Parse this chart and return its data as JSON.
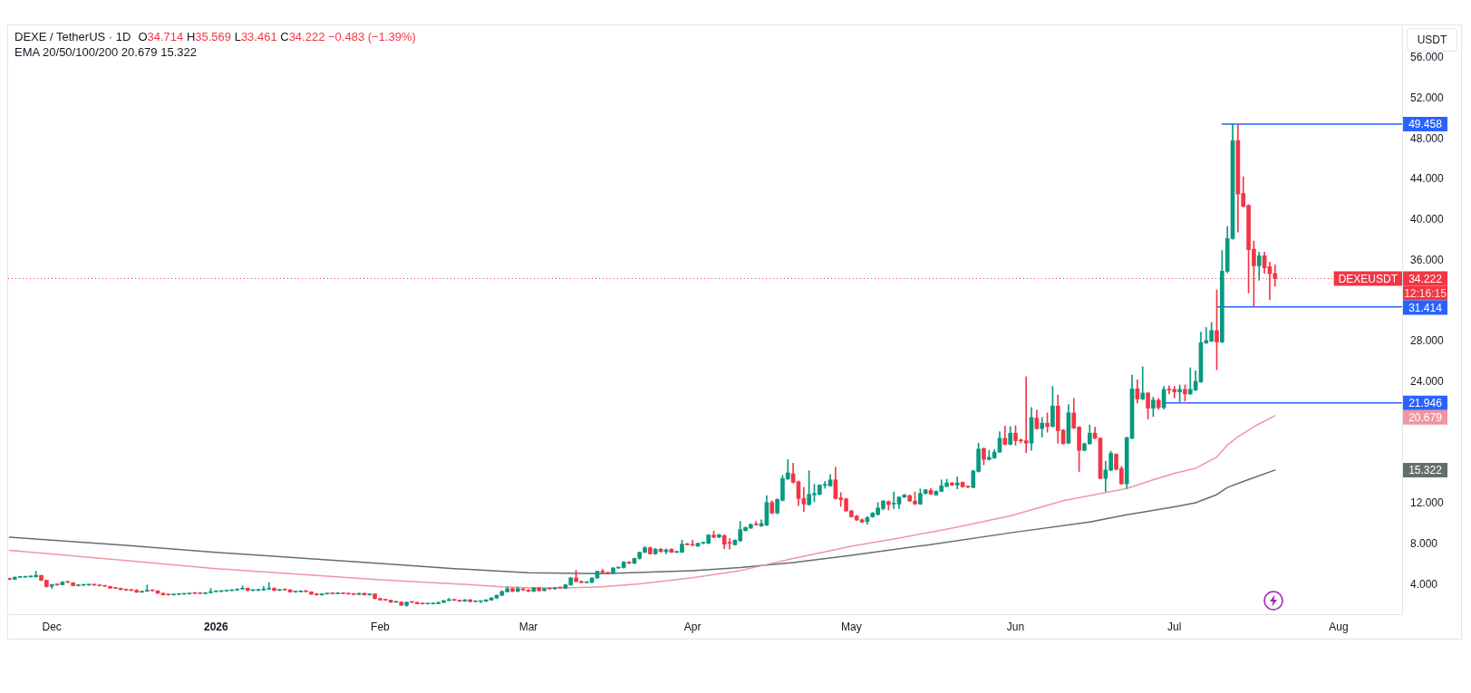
{
  "chart_data": {
    "type": "candlestick",
    "title": "DEXE / TetherUS · 1D",
    "subtitle": "O34.714 H35.569 L33.461 C34.222 −0.483 (−1.39%)",
    "ylabel": "USDT",
    "annotations": [
      "EMA 20/50/100/200 20.679 15.322",
      "DEXEUSDT",
      "12:16:15",
      "20.679",
      "15.322"
    ],
    "x": [
      "2025-11-23",
      "2025-11-24",
      "2025-11-25",
      "2025-11-26",
      "2025-11-27",
      "2025-11-28",
      "2025-11-29",
      "2025-11-30",
      "2025-12-01",
      "2025-12-02",
      "2025-12-03",
      "2025-12-04",
      "2025-12-05",
      "2025-12-06",
      "2025-12-07",
      "2025-12-08",
      "2025-12-09",
      "2025-12-10",
      "2025-12-11",
      "2025-12-12",
      "2025-12-13",
      "2025-12-14",
      "2025-12-15",
      "2025-12-16",
      "2025-12-17",
      "2025-12-18",
      "2025-12-19",
      "2025-12-20",
      "2025-12-21",
      "2025-12-22",
      "2025-12-23",
      "2025-12-24",
      "2025-12-25",
      "2025-12-26",
      "2025-12-27",
      "2025-12-28",
      "2025-12-29",
      "2025-12-30",
      "2025-12-31",
      "2026-01-01",
      "2026-01-02",
      "2026-01-03",
      "2026-01-04",
      "2026-01-05",
      "2026-01-06",
      "2026-01-07",
      "2026-01-08",
      "2026-01-09",
      "2026-01-10",
      "2026-01-11",
      "2026-01-12",
      "2026-01-13",
      "2026-01-14",
      "2026-01-15",
      "2026-01-16",
      "2026-01-17",
      "2026-01-18",
      "2026-01-19",
      "2026-01-20",
      "2026-01-21",
      "2026-01-22",
      "2026-01-23",
      "2026-01-24",
      "2026-01-25",
      "2026-01-26",
      "2026-01-27",
      "2026-01-28",
      "2026-01-29",
      "2026-01-30",
      "2026-01-31",
      "2026-02-01",
      "2026-02-02",
      "2026-02-03",
      "2026-02-04",
      "2026-02-05",
      "2026-02-06",
      "2026-02-07",
      "2026-02-08",
      "2026-02-09",
      "2026-02-10",
      "2026-02-11",
      "2026-02-12",
      "2026-02-13",
      "2026-02-14",
      "2026-02-15",
      "2026-02-16",
      "2026-02-17",
      "2026-02-18",
      "2026-02-19",
      "2026-02-20",
      "2026-02-21",
      "2026-02-22",
      "2026-02-23",
      "2026-02-24",
      "2026-02-25",
      "2026-02-26",
      "2026-02-27",
      "2026-02-28",
      "2026-03-01",
      "2026-03-02",
      "2026-03-03",
      "2026-03-04",
      "2026-03-05",
      "2026-03-06",
      "2026-03-07",
      "2026-03-08",
      "2026-03-09",
      "2026-03-10",
      "2026-03-11",
      "2026-03-12",
      "2026-03-13",
      "2026-03-14",
      "2026-03-15",
      "2026-03-16",
      "2026-03-17",
      "2026-03-18",
      "2026-03-19",
      "2026-03-20",
      "2026-03-21",
      "2026-03-22",
      "2026-03-23",
      "2026-03-24",
      "2026-03-25",
      "2026-03-26",
      "2026-03-27",
      "2026-03-28",
      "2026-03-29",
      "2026-03-30",
      "2026-03-31",
      "2026-04-01",
      "2026-04-02",
      "2026-04-03",
      "2026-04-04",
      "2026-04-05",
      "2026-04-06",
      "2026-04-07",
      "2026-04-08",
      "2026-04-09",
      "2026-04-10",
      "2026-04-11",
      "2026-04-12",
      "2026-04-13",
      "2026-04-14",
      "2026-04-15",
      "2026-04-16",
      "2026-04-17",
      "2026-04-18",
      "2026-04-19",
      "2026-04-20",
      "2026-04-21",
      "2026-04-22",
      "2026-04-23",
      "2026-04-24",
      "2026-04-25",
      "2026-04-26",
      "2026-04-27",
      "2026-04-28",
      "2026-04-29",
      "2026-04-30",
      "2026-05-01",
      "2026-05-02",
      "2026-05-03",
      "2026-05-04",
      "2026-05-05",
      "2026-05-06",
      "2026-05-07",
      "2026-05-08",
      "2026-05-09",
      "2026-05-10",
      "2026-05-11",
      "2026-05-12",
      "2026-05-13",
      "2026-05-14",
      "2026-05-15",
      "2026-05-16",
      "2026-05-17",
      "2026-05-18",
      "2026-05-19",
      "2026-05-20",
      "2026-05-21",
      "2026-05-22",
      "2026-05-23",
      "2026-05-24",
      "2026-05-25",
      "2026-05-26",
      "2026-05-27",
      "2026-05-28",
      "2026-05-29",
      "2026-05-30",
      "2026-05-31",
      "2026-06-01",
      "2026-06-02",
      "2026-06-03",
      "2026-06-04",
      "2026-06-05",
      "2026-06-06",
      "2026-06-07",
      "2026-06-08",
      "2026-06-09",
      "2026-06-10",
      "2026-06-11",
      "2026-06-12",
      "2026-06-13",
      "2026-06-14",
      "2026-06-15",
      "2026-06-16",
      "2026-06-17",
      "2026-06-18",
      "2026-06-19",
      "2026-06-20",
      "2026-06-21",
      "2026-06-22",
      "2026-06-23",
      "2026-06-24",
      "2026-06-25",
      "2026-06-26",
      "2026-06-27",
      "2026-06-28",
      "2026-06-29",
      "2026-06-30",
      "2026-07-01",
      "2026-07-02",
      "2026-07-03",
      "2026-07-04",
      "2026-07-05",
      "2026-07-06",
      "2026-07-07",
      "2026-07-08",
      "2026-07-09",
      "2026-07-10",
      "2026-07-11",
      "2026-07-12",
      "2026-07-13",
      "2026-07-14",
      "2026-07-15",
      "2026-07-16",
      "2026-07-17",
      "2026-07-18",
      "2026-07-19",
      "2026-07-20"
    ],
    "ohlc": [
      [
        4.62,
        4.66,
        4.5,
        4.54
      ],
      [
        4.54,
        4.8,
        4.52,
        4.74
      ],
      [
        4.74,
        4.8,
        4.7,
        4.76
      ],
      [
        4.76,
        4.82,
        4.72,
        4.78
      ],
      [
        4.78,
        4.88,
        4.74,
        4.84
      ],
      [
        4.8,
        5.33,
        4.74,
        4.92
      ],
      [
        4.92,
        4.95,
        4.4,
        4.45
      ],
      [
        4.45,
        4.48,
        3.78,
        3.82
      ],
      [
        3.86,
        4.05,
        3.64,
        4.02
      ],
      [
        4.02,
        4.08,
        3.94,
        4.0
      ],
      [
        4.0,
        4.32,
        3.98,
        4.28
      ],
      [
        4.28,
        4.34,
        4.2,
        4.24
      ],
      [
        4.2,
        4.22,
        3.88,
        3.92
      ],
      [
        3.92,
        4.0,
        3.88,
        3.96
      ],
      [
        3.96,
        4.02,
        3.92,
        3.98
      ],
      [
        3.98,
        4.04,
        3.94,
        4.0
      ],
      [
        4.0,
        4.04,
        3.94,
        3.97
      ],
      [
        3.97,
        4.0,
        3.88,
        3.9
      ],
      [
        3.9,
        3.94,
        3.84,
        3.86
      ],
      [
        3.84,
        3.86,
        3.64,
        3.67
      ],
      [
        3.67,
        3.72,
        3.62,
        3.65
      ],
      [
        3.65,
        3.68,
        3.5,
        3.53
      ],
      [
        3.53,
        3.56,
        3.45,
        3.48
      ],
      [
        3.48,
        3.52,
        3.4,
        3.44
      ],
      [
        3.46,
        3.54,
        3.24,
        3.27
      ],
      [
        3.27,
        3.4,
        3.25,
        3.36
      ],
      [
        3.36,
        3.98,
        3.34,
        3.46
      ],
      [
        3.46,
        3.48,
        3.38,
        3.42
      ],
      [
        3.4,
        3.42,
        3.14,
        3.17
      ],
      [
        3.17,
        3.2,
        2.98,
        3.02
      ],
      [
        3.02,
        3.06,
        2.97,
        3.0
      ],
      [
        3.0,
        3.08,
        2.98,
        3.05
      ],
      [
        3.05,
        3.1,
        3.02,
        3.08
      ],
      [
        3.08,
        3.12,
        3.04,
        3.1
      ],
      [
        3.1,
        3.18,
        3.08,
        3.16
      ],
      [
        3.16,
        3.2,
        3.12,
        3.15
      ],
      [
        3.15,
        3.18,
        3.1,
        3.13
      ],
      [
        3.13,
        3.24,
        3.11,
        3.22
      ],
      [
        3.22,
        3.64,
        3.2,
        3.32
      ],
      [
        3.32,
        3.36,
        3.28,
        3.34
      ],
      [
        3.34,
        3.42,
        3.32,
        3.39
      ],
      [
        3.39,
        3.45,
        3.36,
        3.42
      ],
      [
        3.42,
        3.5,
        3.4,
        3.48
      ],
      [
        3.48,
        3.6,
        3.46,
        3.58
      ],
      [
        3.58,
        3.9,
        3.55,
        3.66
      ],
      [
        3.66,
        3.7,
        3.4,
        3.44
      ],
      [
        3.44,
        3.48,
        3.4,
        3.45
      ],
      [
        3.45,
        3.54,
        3.42,
        3.5
      ],
      [
        3.5,
        3.84,
        3.46,
        3.58
      ],
      [
        3.58,
        4.22,
        3.52,
        3.66
      ],
      [
        3.66,
        3.7,
        3.4,
        3.44
      ],
      [
        3.44,
        3.55,
        3.42,
        3.52
      ],
      [
        3.52,
        3.56,
        3.46,
        3.5
      ],
      [
        3.5,
        3.53,
        3.26,
        3.29
      ],
      [
        3.29,
        3.34,
        3.25,
        3.31
      ],
      [
        3.31,
        3.42,
        3.29,
        3.39
      ],
      [
        3.39,
        3.42,
        3.3,
        3.33
      ],
      [
        3.3,
        3.32,
        3.05,
        3.07
      ],
      [
        3.1,
        3.16,
        2.98,
        3.0
      ],
      [
        3.0,
        3.12,
        2.98,
        3.1
      ],
      [
        3.1,
        3.15,
        3.08,
        3.13
      ],
      [
        3.13,
        3.16,
        3.1,
        3.12
      ],
      [
        3.12,
        3.22,
        3.1,
        3.2
      ],
      [
        3.2,
        3.22,
        3.1,
        3.13
      ],
      [
        3.13,
        3.15,
        3.06,
        3.09
      ],
      [
        3.12,
        3.14,
        3.02,
        3.04
      ],
      [
        3.04,
        3.18,
        3.02,
        3.16
      ],
      [
        3.16,
        3.2,
        2.98,
        3.0
      ],
      [
        3.0,
        3.12,
        2.98,
        3.1
      ],
      [
        3.1,
        3.12,
        2.6,
        2.64
      ],
      [
        2.64,
        2.68,
        2.48,
        2.5
      ],
      [
        2.5,
        2.54,
        2.46,
        2.49
      ],
      [
        2.49,
        2.5,
        2.26,
        2.28
      ],
      [
        2.28,
        2.36,
        2.26,
        2.34
      ],
      [
        2.3,
        2.32,
        1.96,
        1.98
      ],
      [
        1.98,
        2.32,
        1.86,
        2.28
      ],
      [
        2.28,
        2.32,
        2.24,
        2.27
      ],
      [
        2.27,
        2.28,
        2.1,
        2.13
      ],
      [
        2.13,
        2.16,
        2.08,
        2.11
      ],
      [
        2.11,
        2.15,
        2.08,
        2.12
      ],
      [
        2.12,
        2.18,
        2.1,
        2.14
      ],
      [
        2.14,
        2.28,
        2.12,
        2.26
      ],
      [
        2.26,
        2.46,
        2.24,
        2.44
      ],
      [
        2.44,
        2.68,
        2.42,
        2.54
      ],
      [
        2.54,
        2.56,
        2.44,
        2.47
      ],
      [
        2.47,
        2.5,
        2.36,
        2.38
      ],
      [
        2.38,
        2.54,
        2.36,
        2.52
      ],
      [
        2.52,
        2.54,
        2.32,
        2.34
      ],
      [
        2.34,
        2.38,
        2.3,
        2.35
      ],
      [
        2.35,
        2.38,
        2.22,
        2.37
      ],
      [
        2.37,
        2.54,
        2.35,
        2.51
      ],
      [
        2.51,
        2.74,
        2.44,
        2.7
      ],
      [
        2.7,
        3.0,
        2.62,
        2.96
      ],
      [
        2.96,
        3.42,
        2.92,
        3.34
      ],
      [
        3.3,
        3.8,
        3.26,
        3.62
      ],
      [
        3.62,
        3.66,
        3.3,
        3.36
      ],
      [
        3.36,
        3.8,
        3.32,
        3.62
      ],
      [
        3.56,
        3.66,
        3.44,
        3.48
      ],
      [
        3.48,
        3.52,
        3.32,
        3.36
      ],
      [
        3.36,
        3.76,
        3.32,
        3.7
      ],
      [
        3.7,
        3.74,
        3.38,
        3.42
      ],
      [
        3.42,
        3.66,
        3.4,
        3.62
      ],
      [
        3.62,
        3.66,
        3.54,
        3.6
      ],
      [
        3.6,
        3.74,
        3.56,
        3.72
      ],
      [
        3.72,
        3.76,
        3.66,
        3.7
      ],
      [
        3.66,
        4.04,
        3.62,
        4.0
      ],
      [
        4.0,
        4.72,
        3.94,
        4.68
      ],
      [
        4.68,
        5.42,
        4.28,
        4.32
      ],
      [
        4.32,
        4.4,
        4.18,
        4.22
      ],
      [
        4.22,
        4.3,
        4.18,
        4.24
      ],
      [
        4.24,
        4.7,
        4.2,
        4.68
      ],
      [
        4.68,
        5.36,
        4.64,
        5.33
      ],
      [
        5.33,
        5.54,
        5.18,
        5.22
      ],
      [
        5.22,
        5.28,
        5.1,
        5.13
      ],
      [
        5.13,
        5.7,
        5.1,
        5.66
      ],
      [
        5.66,
        5.74,
        5.6,
        5.7
      ],
      [
        5.7,
        6.3,
        5.64,
        6.23
      ],
      [
        6.23,
        6.3,
        6.08,
        6.12
      ],
      [
        6.12,
        6.64,
        6.08,
        6.6
      ],
      [
        6.6,
        7.24,
        6.52,
        7.2
      ],
      [
        7.2,
        7.76,
        7.16,
        7.66
      ],
      [
        7.66,
        7.72,
        7.02,
        7.06
      ],
      [
        7.06,
        7.6,
        7.0,
        7.51
      ],
      [
        7.51,
        7.6,
        7.24,
        7.27
      ],
      [
        7.27,
        7.56,
        7.06,
        7.45
      ],
      [
        7.51,
        7.56,
        7.18,
        7.21
      ],
      [
        7.21,
        7.3,
        7.16,
        7.23
      ],
      [
        7.21,
        8.4,
        7.18,
        8.01
      ],
      [
        8.01,
        8.1,
        7.92,
        7.95
      ],
      [
        7.95,
        8.4,
        7.86,
        7.9
      ],
      [
        7.81,
        8.14,
        7.78,
        8.1
      ],
      [
        8.1,
        8.2,
        8.04,
        8.16
      ],
      [
        8.1,
        8.96,
        8.04,
        8.91
      ],
      [
        8.91,
        9.29,
        8.64,
        8.7
      ],
      [
        8.7,
        8.98,
        8.64,
        8.94
      ],
      [
        8.85,
        8.94,
        7.57,
        8.01
      ],
      [
        8.16,
        8.55,
        7.51,
        8.1
      ],
      [
        7.95,
        8.44,
        7.92,
        8.4
      ],
      [
        8.34,
        10.25,
        8.3,
        9.44
      ],
      [
        9.35,
        9.72,
        9.3,
        9.65
      ],
      [
        9.59,
        10.02,
        9.55,
        9.95
      ],
      [
        9.98,
        10.25,
        9.88,
        9.92
      ],
      [
        9.8,
        10.42,
        9.76,
        10.04
      ],
      [
        9.89,
        12.81,
        9.84,
        12.12
      ],
      [
        12.12,
        12.3,
        11.0,
        11.08
      ],
      [
        11.08,
        12.5,
        11.0,
        12.42
      ],
      [
        12.33,
        14.8,
        12.28,
        14.5
      ],
      [
        14.44,
        16.35,
        14.38,
        15.04
      ],
      [
        14.95,
        15.99,
        14.05,
        14.11
      ],
      [
        14.17,
        14.25,
        11.82,
        12.51
      ],
      [
        12.51,
        13.61,
        11.23,
        11.97
      ],
      [
        11.91,
        15.25,
        11.85,
        12.92
      ],
      [
        12.87,
        13.91,
        12.18,
        13.01
      ],
      [
        12.92,
        13.9,
        12.86,
        13.82
      ],
      [
        13.82,
        14.2,
        13.52,
        13.85
      ],
      [
        13.76,
        14.89,
        13.7,
        14.35
      ],
      [
        14.35,
        15.6,
        12.45,
        12.51
      ],
      [
        12.57,
        13.1,
        11.73,
        12.42
      ],
      [
        12.48,
        12.55,
        11.24,
        11.29
      ],
      [
        11.29,
        11.35,
        10.66,
        10.72
      ],
      [
        10.78,
        10.86,
        10.34,
        10.39
      ],
      [
        10.42,
        10.5,
        10.14,
        10.19
      ],
      [
        10.25,
        10.72,
        9.98,
        10.63
      ],
      [
        10.7,
        11.14,
        10.66,
        11.08
      ],
      [
        10.93,
        12.12,
        10.88,
        11.58
      ],
      [
        11.52,
        12.32,
        11.37,
        12.27
      ],
      [
        12.21,
        12.28,
        11.37,
        11.91
      ],
      [
        11.97,
        13.16,
        11.52,
        12.06
      ],
      [
        11.97,
        12.7,
        11.52,
        12.65
      ],
      [
        12.65,
        12.92,
        12.6,
        12.86
      ],
      [
        12.8,
        12.86,
        12.22,
        12.27
      ],
      [
        12.27,
        13.16,
        11.92,
        11.97
      ],
      [
        11.97,
        13.46,
        11.92,
        13.01
      ],
      [
        13.01,
        13.42,
        12.96,
        13.37
      ],
      [
        13.31,
        13.52,
        12.9,
        12.95
      ],
      [
        12.86,
        13.28,
        12.82,
        13.22
      ],
      [
        13.22,
        14.35,
        13.18,
        13.76
      ],
      [
        13.7,
        14.41,
        13.66,
        14.05
      ],
      [
        14.05,
        14.1,
        13.8,
        13.84
      ],
      [
        13.84,
        14.65,
        13.46,
        14.05
      ],
      [
        14.11,
        14.16,
        13.62,
        13.67
      ],
      [
        13.7,
        13.76,
        13.58,
        13.64
      ],
      [
        13.61,
        15.3,
        13.56,
        15.24
      ],
      [
        15.18,
        17.98,
        15.12,
        17.39
      ],
      [
        17.45,
        17.5,
        15.84,
        16.37
      ],
      [
        16.37,
        17.27,
        16.3,
        16.58
      ],
      [
        16.52,
        17.33,
        16.46,
        17.09
      ],
      [
        17.09,
        19.11,
        17.04,
        18.46
      ],
      [
        18.46,
        19.65,
        17.8,
        17.86
      ],
      [
        17.86,
        19.62,
        17.8,
        18.96
      ],
      [
        18.96,
        19.71,
        17.77,
        18.22
      ],
      [
        18.22,
        18.4,
        18.0,
        18.2
      ],
      [
        18.22,
        24.53,
        17.03,
        17.98
      ],
      [
        17.98,
        21.49,
        17.27,
        20.51
      ],
      [
        20.45,
        21.26,
        19.36,
        19.41
      ],
      [
        19.41,
        20.51,
        18.58,
        19.95
      ],
      [
        19.95,
        20.96,
        19.05,
        19.62
      ],
      [
        19.62,
        23.58,
        19.56,
        21.64
      ],
      [
        21.64,
        22.74,
        17.98,
        19.2
      ],
      [
        19.26,
        19.32,
        17.86,
        17.92
      ],
      [
        17.98,
        21.79,
        17.92,
        20.96
      ],
      [
        20.96,
        22.39,
        19.4,
        19.47
      ],
      [
        19.56,
        19.62,
        15.18,
        17.27
      ],
      [
        17.27,
        17.98,
        17.2,
        17.92
      ],
      [
        17.92,
        19.77,
        17.86,
        18.96
      ],
      [
        18.96,
        19.56,
        18.4,
        18.46
      ],
      [
        18.46,
        18.52,
        14.44,
        14.5
      ],
      [
        14.5,
        16.2,
        13.22,
        15.33
      ],
      [
        15.3,
        17.18,
        15.24,
        16.97
      ],
      [
        16.88,
        16.94,
        15.33,
        15.39
      ],
      [
        15.48,
        15.69,
        13.9,
        13.96
      ],
      [
        13.96,
        18.58,
        13.52,
        18.52
      ],
      [
        18.46,
        24.68,
        18.4,
        23.34
      ],
      [
        23.34,
        24.23,
        21.94,
        22.33
      ],
      [
        22.33,
        25.51,
        22.27,
        22.92
      ],
      [
        22.92,
        22.98,
        20.36,
        21.43
      ],
      [
        21.43,
        22.53,
        20.6,
        22.23
      ],
      [
        22.23,
        22.4,
        21.3,
        21.49
      ],
      [
        21.49,
        23.57,
        21.34,
        23.28
      ],
      [
        23.28,
        23.63,
        22.83,
        23.22
      ],
      [
        23.28,
        23.57,
        22.44,
        23.04
      ],
      [
        23.04,
        23.72,
        22.03,
        23.28
      ],
      [
        23.28,
        23.72,
        22.15,
        22.83
      ],
      [
        22.83,
        25.42,
        22.77,
        23.28
      ],
      [
        23.22,
        25.12,
        23.16,
        24.08
      ],
      [
        24.02,
        28.93,
        23.96,
        27.89
      ],
      [
        27.86,
        29.38,
        27.8,
        28.1
      ],
      [
        28.04,
        29.88,
        27.98,
        29.08
      ],
      [
        29.08,
        33.1,
        25.21,
        27.95
      ],
      [
        27.95,
        36.97,
        27.89,
        34.94
      ],
      [
        34.94,
        39.35,
        34.8,
        38.16
      ],
      [
        38.16,
        49.458,
        38.1,
        47.83
      ],
      [
        47.83,
        49.4,
        38.81,
        42.56
      ],
      [
        42.62,
        44.26,
        41.28,
        41.34
      ],
      [
        41.43,
        41.5,
        32.8,
        37.06
      ],
      [
        37.12,
        37.92,
        31.46,
        35.48
      ],
      [
        35.48,
        36.82,
        34.05,
        36.46
      ],
      [
        36.46,
        36.82,
        34.74,
        35.27
      ],
      [
        35.39,
        35.84,
        32.14,
        34.7
      ],
      [
        34.714,
        35.569,
        33.461,
        34.222
      ]
    ],
    "series": [
      {
        "type": "line",
        "color": "#f096a0",
        "x": [
          "2025-11-23",
          "2025-12-15",
          "2026-01-01",
          "2026-01-15",
          "2026-02-01",
          "2026-02-15",
          "2026-02-24",
          "2026-03-01",
          "2026-03-08",
          "2026-03-15",
          "2026-03-22",
          "2026-04-01",
          "2026-04-10",
          "2026-04-20",
          "2026-05-01",
          "2026-05-10",
          "2026-05-20",
          "2026-05-31",
          "2026-06-10",
          "2026-06-18",
          "2026-06-22",
          "2026-06-26",
          "2026-07-01",
          "2026-07-05",
          "2026-07-09",
          "2026-07-11",
          "2026-07-13",
          "2026-07-16",
          "2026-07-20"
        ],
        "values": [
          7.4,
          6.4,
          5.6,
          5.1,
          4.5,
          4.1,
          3.8,
          3.7,
          3.7,
          3.8,
          4.1,
          4.7,
          5.4,
          6.6,
          7.8,
          8.6,
          9.6,
          10.8,
          12.3,
          13.1,
          13.5,
          14.2,
          15.0,
          15.5,
          16.6,
          17.8,
          18.6,
          19.6,
          20.679
        ]
      },
      {
        "type": "line",
        "color": "#646e6c",
        "x": [
          "2025-11-23",
          "2025-12-15",
          "2026-01-01",
          "2026-01-15",
          "2026-02-01",
          "2026-02-15",
          "2026-03-01",
          "2026-03-15",
          "2026-04-01",
          "2026-04-10",
          "2026-04-20",
          "2026-05-01",
          "2026-05-15",
          "2026-06-01",
          "2026-06-15",
          "2026-06-22",
          "2026-07-01",
          "2026-07-05",
          "2026-07-09",
          "2026-07-11",
          "2026-07-14",
          "2026-07-20"
        ],
        "values": [
          8.7,
          7.9,
          7.2,
          6.7,
          6.1,
          5.6,
          5.2,
          5.1,
          5.4,
          5.7,
          6.2,
          6.9,
          7.9,
          9.2,
          10.2,
          10.9,
          11.7,
          12.1,
          12.9,
          13.6,
          14.2,
          15.322
        ]
      },
      {
        "type": "line",
        "color": "#2962ff",
        "x": [
          "2026-07-10",
          "2026-08-13"
        ],
        "values": [
          49.458,
          49.458
        ],
        "value_labels": [
          null,
          "49.458"
        ]
      },
      {
        "type": "line",
        "color": "#2962ff",
        "x": [
          "2026-07-09",
          "2026-08-13"
        ],
        "values": [
          31.414,
          31.414
        ],
        "value_labels": [
          null,
          "31.414"
        ]
      },
      {
        "type": "line",
        "color": "#2962ff",
        "x": [
          "2026-06-29",
          "2026-08-13"
        ],
        "values": [
          21.946,
          21.946
        ],
        "value_labels": [
          null,
          "21.946"
        ]
      }
    ],
    "ref_lines": [
      {
        "axis": "y",
        "value": 34.222,
        "label": "34.222",
        "color": "#f23645",
        "line_style": "dotted"
      }
    ],
    "xlim": [
      "2025-11-22T18:00",
      "2026-08-13"
    ],
    "xticks": [
      {
        "value": "2025-12-01",
        "label": "Dec"
      },
      {
        "value": "2026-01-01",
        "label": "2026"
      },
      {
        "value": "2026-02-01",
        "label": "Feb"
      },
      {
        "value": "2026-03-01",
        "label": "Mar"
      },
      {
        "value": "2026-04-01",
        "label": "Apr"
      },
      {
        "value": "2026-05-01",
        "label": "May"
      },
      {
        "value": "2026-06-01",
        "label": "Jun"
      },
      {
        "value": "2026-07-01",
        "label": "Jul"
      },
      {
        "value": "2026-08-01",
        "label": "Aug"
      }
    ],
    "ylim": [
      1.1,
      59.2
    ],
    "yticks": [
      {
        "value": 4,
        "label": "4.000"
      },
      {
        "value": 8,
        "label": "8.000"
      },
      {
        "value": 12,
        "label": "12.000"
      },
      {
        "value": 24,
        "label": "24.000"
      },
      {
        "value": 28,
        "label": "28.000"
      },
      {
        "value": 36,
        "label": "36.000"
      },
      {
        "value": 40,
        "label": "40.000"
      },
      {
        "value": 44,
        "label": "44.000"
      },
      {
        "value": 48,
        "label": "48.000"
      },
      {
        "value": 52,
        "label": "52.000"
      },
      {
        "value": 56,
        "label": "56.000"
      }
    ]
  }
}
